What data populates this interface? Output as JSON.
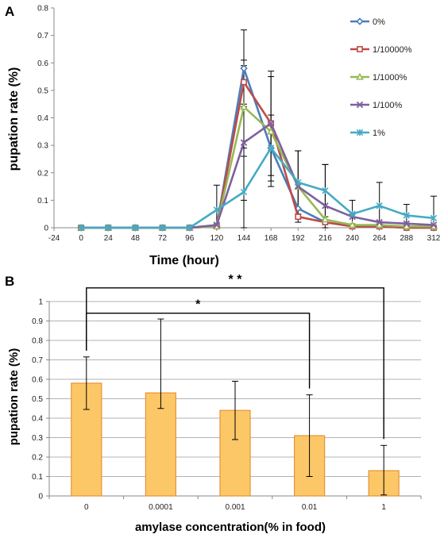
{
  "chart_data": [
    {
      "panel_label": "A",
      "type": "line",
      "xlabel": "Time (hour)",
      "ylabel": "pupation rate (%)",
      "xlim": [
        -24,
        312
      ],
      "ylim": [
        0,
        0.8
      ],
      "x": [
        0,
        24,
        48,
        72,
        96,
        120,
        144,
        168,
        192,
        216,
        240,
        264,
        288,
        312
      ],
      "x_ticks": [
        "-24",
        "0",
        "24",
        "48",
        "72",
        "96",
        "120",
        "144",
        "168",
        "192",
        "216",
        "240",
        "264",
        "288",
        "312"
      ],
      "y_ticks": [
        "0",
        "0.1",
        "0.2",
        "0.3",
        "0.4",
        "0.5",
        "0.6",
        "0.7",
        "0.8"
      ],
      "legend_position": "right",
      "series": [
        {
          "name": "0%",
          "color": "#4a7ebb",
          "marker": "diamond",
          "values": [
            0,
            0,
            0,
            0,
            0,
            0.005,
            0.58,
            0.29,
            0.07,
            0.02,
            0.005,
            0.005,
            0,
            0
          ],
          "errors": [
            0,
            0,
            0,
            0,
            0,
            0,
            0.14,
            0,
            0,
            0,
            0,
            0,
            0,
            0
          ]
        },
        {
          "name": "1/10000%",
          "color": "#be4b48",
          "marker": "square",
          "values": [
            0,
            0,
            0,
            0,
            0,
            0.005,
            0.53,
            0.38,
            0.04,
            0.02,
            0.005,
            0.005,
            0,
            0
          ],
          "errors": [
            0,
            0,
            0,
            0,
            0,
            0,
            0.08,
            0,
            0,
            0,
            0,
            0,
            0,
            0
          ]
        },
        {
          "name": "1/1000%",
          "color": "#98b954",
          "marker": "triangle",
          "values": [
            0,
            0,
            0,
            0,
            0,
            0.005,
            0.44,
            0.35,
            0.15,
            0.03,
            0.01,
            0.01,
            0.005,
            0.005
          ],
          "errors": [
            0,
            0,
            0,
            0,
            0,
            0,
            0.15,
            0.2,
            0,
            0,
            0,
            0,
            0,
            0
          ]
        },
        {
          "name": "1/100%",
          "color": "#7d60a0",
          "marker": "x",
          "values": [
            0,
            0,
            0,
            0,
            0,
            0.01,
            0.31,
            0.38,
            0.15,
            0.08,
            0.04,
            0.02,
            0.015,
            0.01
          ],
          "errors": [
            0,
            0,
            0,
            0,
            0,
            0,
            0.21,
            0.19,
            0.13,
            0.15,
            0,
            0,
            0,
            0
          ]
        },
        {
          "name": "1%",
          "color": "#46aac4",
          "marker": "star",
          "values": [
            0,
            0,
            0,
            0,
            0,
            0.065,
            0.13,
            0.29,
            0.165,
            0.135,
            0.05,
            0.08,
            0.045,
            0.035
          ],
          "errors": [
            0,
            0,
            0,
            0,
            0,
            0.09,
            0.13,
            0.12,
            0.115,
            0.095,
            0.05,
            0.085,
            0.04,
            0.08
          ]
        }
      ]
    },
    {
      "panel_label": "B",
      "type": "bar",
      "xlabel": "amylase concentration(% in food)",
      "ylabel": "pupation rate (%)",
      "ylim": [
        0,
        1
      ],
      "y_ticks": [
        "0",
        "0.1",
        "0.2",
        "0.3",
        "0.4",
        "0.5",
        "0.6",
        "0.7",
        "0.8",
        "0.9",
        "1"
      ],
      "grid": true,
      "categories": [
        "0",
        "0.0001",
        "0.001",
        "0.01",
        "1"
      ],
      "values": [
        0.58,
        0.53,
        0.44,
        0.31,
        0.13
      ],
      "err_low": [
        0.445,
        0.45,
        0.29,
        0.1,
        0.005
      ],
      "err_high": [
        0.715,
        0.91,
        0.59,
        0.52,
        0.26
      ],
      "bar_color": "#fcc767",
      "bar_edge": "#e8913a",
      "significance": [
        {
          "from": "0",
          "to": "0.01",
          "label": "*",
          "level": 0.94
        },
        {
          "from": "0",
          "to": "1",
          "label": "* *",
          "level": 1.07
        }
      ]
    }
  ]
}
